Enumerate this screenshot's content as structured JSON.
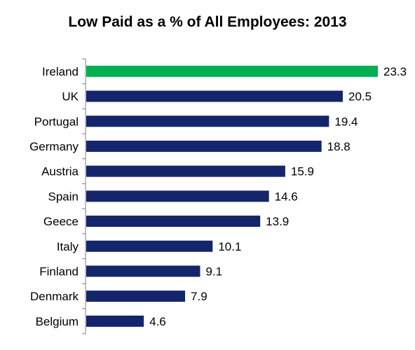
{
  "chart_data": {
    "type": "bar",
    "orientation": "horizontal",
    "title": "Low Paid as a % of All Employees:  2013",
    "xlabel": "",
    "ylabel": "",
    "categories": [
      "Ireland",
      "UK",
      "Portugal",
      "Germany",
      "Austria",
      "Spain",
      "Geece",
      "Italy",
      "Finland",
      "Denmark",
      "Belgium"
    ],
    "values": [
      23.3,
      20.5,
      19.4,
      18.8,
      15.9,
      14.6,
      13.9,
      10.1,
      9.1,
      7.9,
      4.6
    ],
    "value_labels": [
      "23.3",
      "20.5",
      "19.4",
      "18.8",
      "15.9",
      "14.6",
      "13.9",
      "10.1",
      "9.1",
      "7.9",
      "4.6"
    ],
    "xlim": [
      0,
      23.3
    ],
    "colors": {
      "highlight": "#00b050",
      "default": "#14256b",
      "axis": "#7f7f7f"
    },
    "highlight_category": "Ireland",
    "grid": false,
    "legend": "none"
  }
}
